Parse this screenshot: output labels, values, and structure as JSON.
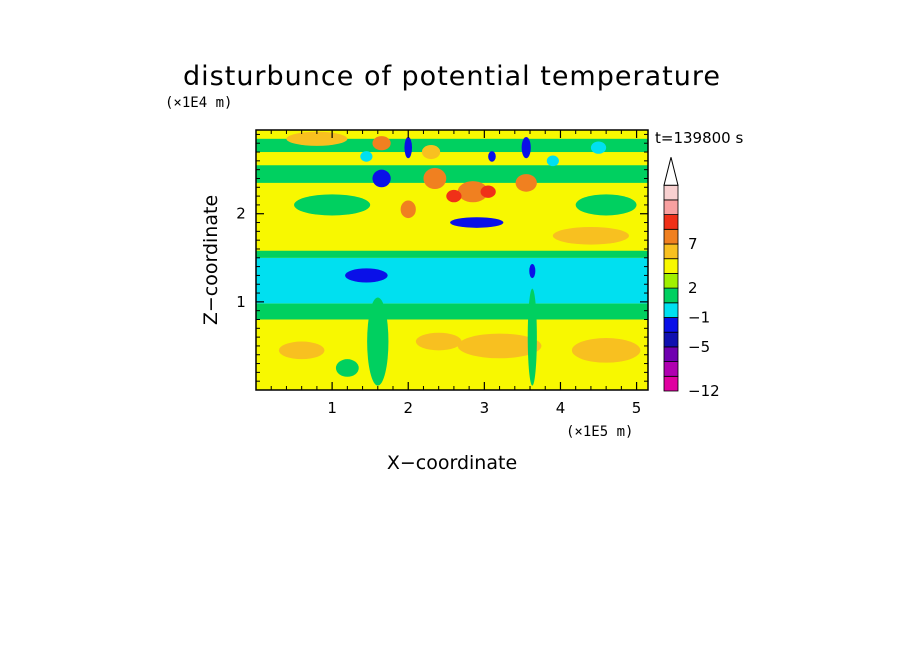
{
  "chart_data": {
    "type": "heatmap",
    "title": "disturbunce of potential temperature",
    "xlabel": "X−coordinate",
    "ylabel": "Z−coordinate",
    "x_unit": "(×1E5 m)",
    "y_unit": "(×1E4 m)",
    "time_label": "t=139800 s",
    "xlim": [
      0,
      5.15
    ],
    "ylim": [
      0,
      2.95
    ],
    "x_ticks": [
      1,
      2,
      3,
      4,
      5
    ],
    "y_ticks": [
      1,
      2
    ],
    "x_tick_labels": [
      "1",
      "2",
      "3",
      "4",
      "5"
    ],
    "y_tick_labels": [
      "1",
      "2"
    ],
    "colorbar": {
      "levels_labeled": [
        "7",
        "2",
        "−1",
        "−5",
        "−12"
      ],
      "label_level_index": [
        10,
        7,
        5,
        3,
        0
      ],
      "colors": [
        "#e000a0",
        "#b000b0",
        "#7000b0",
        "#1010b0",
        "#0a10e8",
        "#00e0f0",
        "#00d060",
        "#a0f000",
        "#f8f800",
        "#f8c020",
        "#f08020",
        "#f03018",
        "#f8a0a0",
        "#f8d0d0"
      ],
      "extend": "max"
    },
    "background_level": 8,
    "features": [
      {
        "kind": "band",
        "z_top": 1.5,
        "z_bottom": 0.98,
        "level": 5,
        "note": "cyan band"
      },
      {
        "kind": "band",
        "z_top": 0.98,
        "z_bottom": 0.8,
        "level": 6
      },
      {
        "kind": "band",
        "z_top": 1.58,
        "z_bottom": 1.5,
        "level": 6
      },
      {
        "kind": "band",
        "z_top": 2.55,
        "z_bottom": 2.35,
        "level": 6
      },
      {
        "kind": "band",
        "z_top": 2.85,
        "z_bottom": 2.7,
        "level": 6
      },
      {
        "kind": "blob",
        "x": 1.45,
        "z": 1.3,
        "rx": 0.28,
        "rz": 0.08,
        "level": 4
      },
      {
        "kind": "blob",
        "x": 2.9,
        "z": 1.9,
        "rx": 0.35,
        "rz": 0.06,
        "level": 4
      },
      {
        "kind": "blob",
        "x": 3.63,
        "z": 1.35,
        "rx": 0.04,
        "rz": 0.08,
        "level": 4
      },
      {
        "kind": "blob",
        "x": 1.65,
        "z": 2.4,
        "rx": 0.12,
        "rz": 0.1,
        "level": 4
      },
      {
        "kind": "blob",
        "x": 2.0,
        "z": 2.75,
        "rx": 0.05,
        "rz": 0.12,
        "level": 4
      },
      {
        "kind": "blob",
        "x": 3.55,
        "z": 2.75,
        "rx": 0.06,
        "rz": 0.12,
        "level": 4
      },
      {
        "kind": "blob",
        "x": 3.1,
        "z": 2.65,
        "rx": 0.05,
        "rz": 0.06,
        "level": 4
      },
      {
        "kind": "blob",
        "x": 2.35,
        "z": 2.4,
        "rx": 0.15,
        "rz": 0.12,
        "level": 10
      },
      {
        "kind": "blob",
        "x": 2.85,
        "z": 2.25,
        "rx": 0.2,
        "rz": 0.12,
        "level": 10
      },
      {
        "kind": "blob",
        "x": 3.55,
        "z": 2.35,
        "rx": 0.14,
        "rz": 0.1,
        "level": 10
      },
      {
        "kind": "blob",
        "x": 1.65,
        "z": 2.8,
        "rx": 0.12,
        "rz": 0.08,
        "level": 10
      },
      {
        "kind": "blob",
        "x": 2.3,
        "z": 2.7,
        "rx": 0.12,
        "rz": 0.08,
        "level": 9
      },
      {
        "kind": "blob",
        "x": 2.6,
        "z": 2.2,
        "rx": 0.1,
        "rz": 0.07,
        "level": 11
      },
      {
        "kind": "blob",
        "x": 3.05,
        "z": 2.25,
        "rx": 0.1,
        "rz": 0.07,
        "level": 11
      },
      {
        "kind": "blob",
        "x": 2.0,
        "z": 2.05,
        "rx": 0.1,
        "rz": 0.1,
        "level": 10
      },
      {
        "kind": "blob",
        "x": 3.2,
        "z": 0.5,
        "rx": 0.55,
        "rz": 0.14,
        "level": 9
      },
      {
        "kind": "blob",
        "x": 4.6,
        "z": 0.45,
        "rx": 0.45,
        "rz": 0.14,
        "level": 9
      },
      {
        "kind": "blob",
        "x": 2.4,
        "z": 0.55,
        "rx": 0.3,
        "rz": 0.1,
        "level": 9
      },
      {
        "kind": "blob",
        "x": 0.6,
        "z": 0.45,
        "rx": 0.3,
        "rz": 0.1,
        "level": 9
      },
      {
        "kind": "blob",
        "x": 4.4,
        "z": 1.75,
        "rx": 0.5,
        "rz": 0.1,
        "level": 9
      },
      {
        "kind": "blob",
        "x": 0.8,
        "z": 2.85,
        "rx": 0.4,
        "rz": 0.08,
        "level": 9
      },
      {
        "kind": "blob",
        "x": 1.0,
        "z": 2.1,
        "rx": 0.5,
        "rz": 0.12,
        "level": 6
      },
      {
        "kind": "blob",
        "x": 4.6,
        "z": 2.1,
        "rx": 0.4,
        "rz": 0.12,
        "level": 6
      },
      {
        "kind": "blob",
        "x": 3.63,
        "z": 0.6,
        "rx": 0.06,
        "rz": 0.55,
        "level": 6
      },
      {
        "kind": "blob",
        "x": 1.6,
        "z": 0.55,
        "rx": 0.14,
        "rz": 0.5,
        "level": 6
      },
      {
        "kind": "blob",
        "x": 1.2,
        "z": 0.25,
        "rx": 0.15,
        "rz": 0.1,
        "level": 6
      },
      {
        "kind": "blob",
        "x": 1.45,
        "z": 2.65,
        "rx": 0.08,
        "rz": 0.06,
        "level": 5
      },
      {
        "kind": "blob",
        "x": 3.9,
        "z": 2.6,
        "rx": 0.08,
        "rz": 0.06,
        "level": 5
      },
      {
        "kind": "blob",
        "x": 4.5,
        "z": 2.75,
        "rx": 0.1,
        "rz": 0.07,
        "level": 5
      }
    ]
  }
}
